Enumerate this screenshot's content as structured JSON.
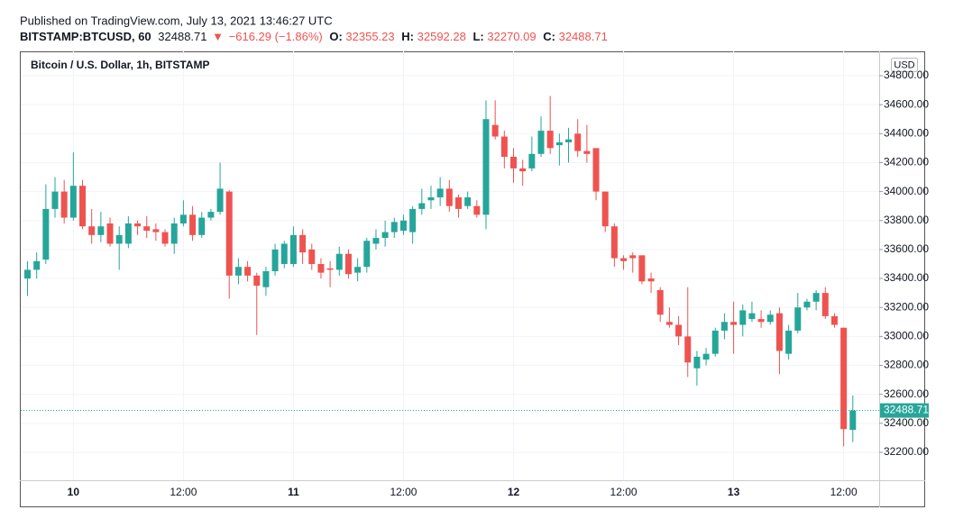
{
  "header": {
    "published": "Published on TradingView.com, July 13, 2021 13:46:27 UTC",
    "symbol": "BITSTAMP:BTCUSD, 60",
    "direction": "▼",
    "change": "−616.29 (−1.86%)",
    "o_label": "O:",
    "h_label": "H:",
    "l_label": "L:",
    "c_label": "C:"
  },
  "chart_data": {
    "type": "candlestick",
    "title": "Bitcoin / U.S. Dollar, 1h, BITSTAMP",
    "currency": "USD",
    "up_color": "#26a69a",
    "down_color": "#ef5350",
    "grid": true,
    "categories": [
      null,
      null,
      null,
      null,
      null,
      "10",
      null,
      null,
      null,
      null,
      null,
      null,
      null,
      null,
      null,
      null,
      null,
      "12:00",
      null,
      null,
      null,
      null,
      null,
      null,
      null,
      null,
      null,
      null,
      null,
      "11",
      null,
      null,
      null,
      null,
      null,
      null,
      null,
      null,
      null,
      null,
      null,
      "12:00",
      null,
      null,
      null,
      null,
      null,
      null,
      null,
      null,
      null,
      null,
      null,
      "12",
      null,
      null,
      null,
      null,
      null,
      null,
      null,
      null,
      null,
      null,
      null,
      "12:00",
      null,
      null,
      null,
      null,
      null,
      null,
      null,
      null,
      null,
      null,
      null,
      "13",
      null,
      null,
      null,
      null,
      null,
      null,
      null,
      null,
      null,
      null,
      null,
      "12:00",
      null
    ],
    "open": [
      33400,
      33460,
      33530,
      33880,
      34000,
      33820,
      34040,
      33760,
      33700,
      33780,
      33640,
      33640,
      33780,
      33760,
      33740,
      33720,
      33640,
      33780,
      33840,
      33700,
      33820,
      33860,
      34000,
      33420,
      33480,
      33420,
      33340,
      33450,
      33500,
      33500,
      33700,
      33600,
      33500,
      33470,
      33460,
      33570,
      33440,
      33480,
      33640,
      33680,
      33720,
      33730,
      33720,
      33880,
      33940,
      33960,
      34020,
      33960,
      33900,
      33900,
      33840,
      34460,
      34380,
      34240,
      34160,
      34160,
      34260,
      34420,
      34320,
      34340,
      34400,
      34280,
      34300,
      34000,
      33760,
      33540,
      33560,
      33560,
      33400,
      33320,
      33100,
      33080,
      33000,
      32780,
      32840,
      32880,
      33040,
      33100,
      33080,
      33120,
      33120,
      33100,
      33160,
      32880,
      33040,
      33200,
      33240,
      33300,
      33140,
      33060,
      32355.23
    ],
    "high": [
      33520,
      33580,
      34050,
      34100,
      34080,
      34270,
      34080,
      33880,
      33860,
      33820,
      33760,
      33830,
      33800,
      33830,
      33780,
      33740,
      33820,
      33940,
      33900,
      33860,
      33880,
      34200,
      34010,
      33540,
      33520,
      33440,
      33480,
      33640,
      33660,
      33760,
      33740,
      33640,
      33540,
      33520,
      33620,
      33600,
      33540,
      33680,
      33740,
      33800,
      33820,
      33840,
      33900,
      34020,
      34040,
      34100,
      34080,
      33980,
      34000,
      33940,
      34630,
      34630,
      34420,
      34300,
      34220,
      34380,
      34520,
      34660,
      34400,
      34440,
      34500,
      34460,
      34300,
      34000,
      33780,
      33560,
      33580,
      33560,
      33440,
      33340,
      33200,
      33140,
      33340,
      32900,
      32920,
      33060,
      33160,
      33240,
      33220,
      33240,
      33180,
      33180,
      33200,
      33080,
      33300,
      33260,
      33320,
      33340,
      33160,
      33060,
      32592.28
    ],
    "low": [
      33280,
      33400,
      33500,
      33820,
      33780,
      33800,
      33740,
      33640,
      33650,
      33620,
      33460,
      33610,
      33700,
      33680,
      33660,
      33620,
      33570,
      33760,
      33660,
      33680,
      33800,
      33840,
      33260,
      33360,
      33380,
      33010,
      33280,
      33420,
      33470,
      33480,
      33500,
      33460,
      33400,
      33340,
      33420,
      33400,
      33380,
      33440,
      33600,
      33620,
      33680,
      33700,
      33640,
      33840,
      33880,
      33900,
      33860,
      33820,
      33880,
      33820,
      33740,
      34360,
      34160,
      34060,
      34040,
      34140,
      34240,
      34260,
      34180,
      34200,
      34240,
      34200,
      33940,
      33720,
      33480,
      33460,
      33440,
      33360,
      33300,
      33100,
      33060,
      32940,
      32720,
      32660,
      32800,
      32860,
      32980,
      32880,
      33000,
      33100,
      33060,
      33080,
      32740,
      32840,
      33020,
      33180,
      33180,
      33120,
      33060,
      32240,
      32270.09
    ],
    "close": [
      33460,
      33520,
      33880,
      34000,
      33820,
      34040,
      33760,
      33700,
      33760,
      33640,
      33700,
      33780,
      33760,
      33730,
      33720,
      33640,
      33780,
      33840,
      33700,
      33820,
      33860,
      34020,
      33420,
      33480,
      33420,
      33350,
      33450,
      33600,
      33640,
      33700,
      33580,
      33500,
      33440,
      33460,
      33570,
      33430,
      33480,
      33660,
      33680,
      33720,
      33790,
      33800,
      33880,
      33920,
      33960,
      34020,
      33900,
      33880,
      33960,
      33840,
      34500,
      34380,
      34240,
      34160,
      34140,
      34260,
      34420,
      34300,
      34340,
      34360,
      34280,
      34260,
      34000,
      33760,
      33540,
      33520,
      33540,
      33380,
      33380,
      33150,
      33080,
      33000,
      32820,
      32860,
      32880,
      33040,
      33100,
      33080,
      33180,
      33160,
      33100,
      33150,
      32900,
      33040,
      33200,
      33240,
      33300,
      33140,
      33080,
      32360,
      32488.71
    ],
    "ylim": [
      32007,
      34968
    ],
    "yticks": [
      {
        "value": 32200,
        "label": "32200.00"
      },
      {
        "value": 32400,
        "label": "32400.00"
      },
      {
        "value": 32600,
        "label": "32600.00"
      },
      {
        "value": 32800,
        "label": "32800.00"
      },
      {
        "value": 33000,
        "label": "33000.00"
      },
      {
        "value": 33200,
        "label": "33200.00"
      },
      {
        "value": 33400,
        "label": "33400.00"
      },
      {
        "value": 33600,
        "label": "33600.00"
      },
      {
        "value": 33800,
        "label": "33800.00"
      },
      {
        "value": 34000,
        "label": "34000.00"
      },
      {
        "value": 34200,
        "label": "34200.00"
      },
      {
        "value": 34400,
        "label": "34400.00"
      },
      {
        "value": 34600,
        "label": "34600.00"
      },
      {
        "value": 34800,
        "label": "34800.00"
      }
    ]
  }
}
